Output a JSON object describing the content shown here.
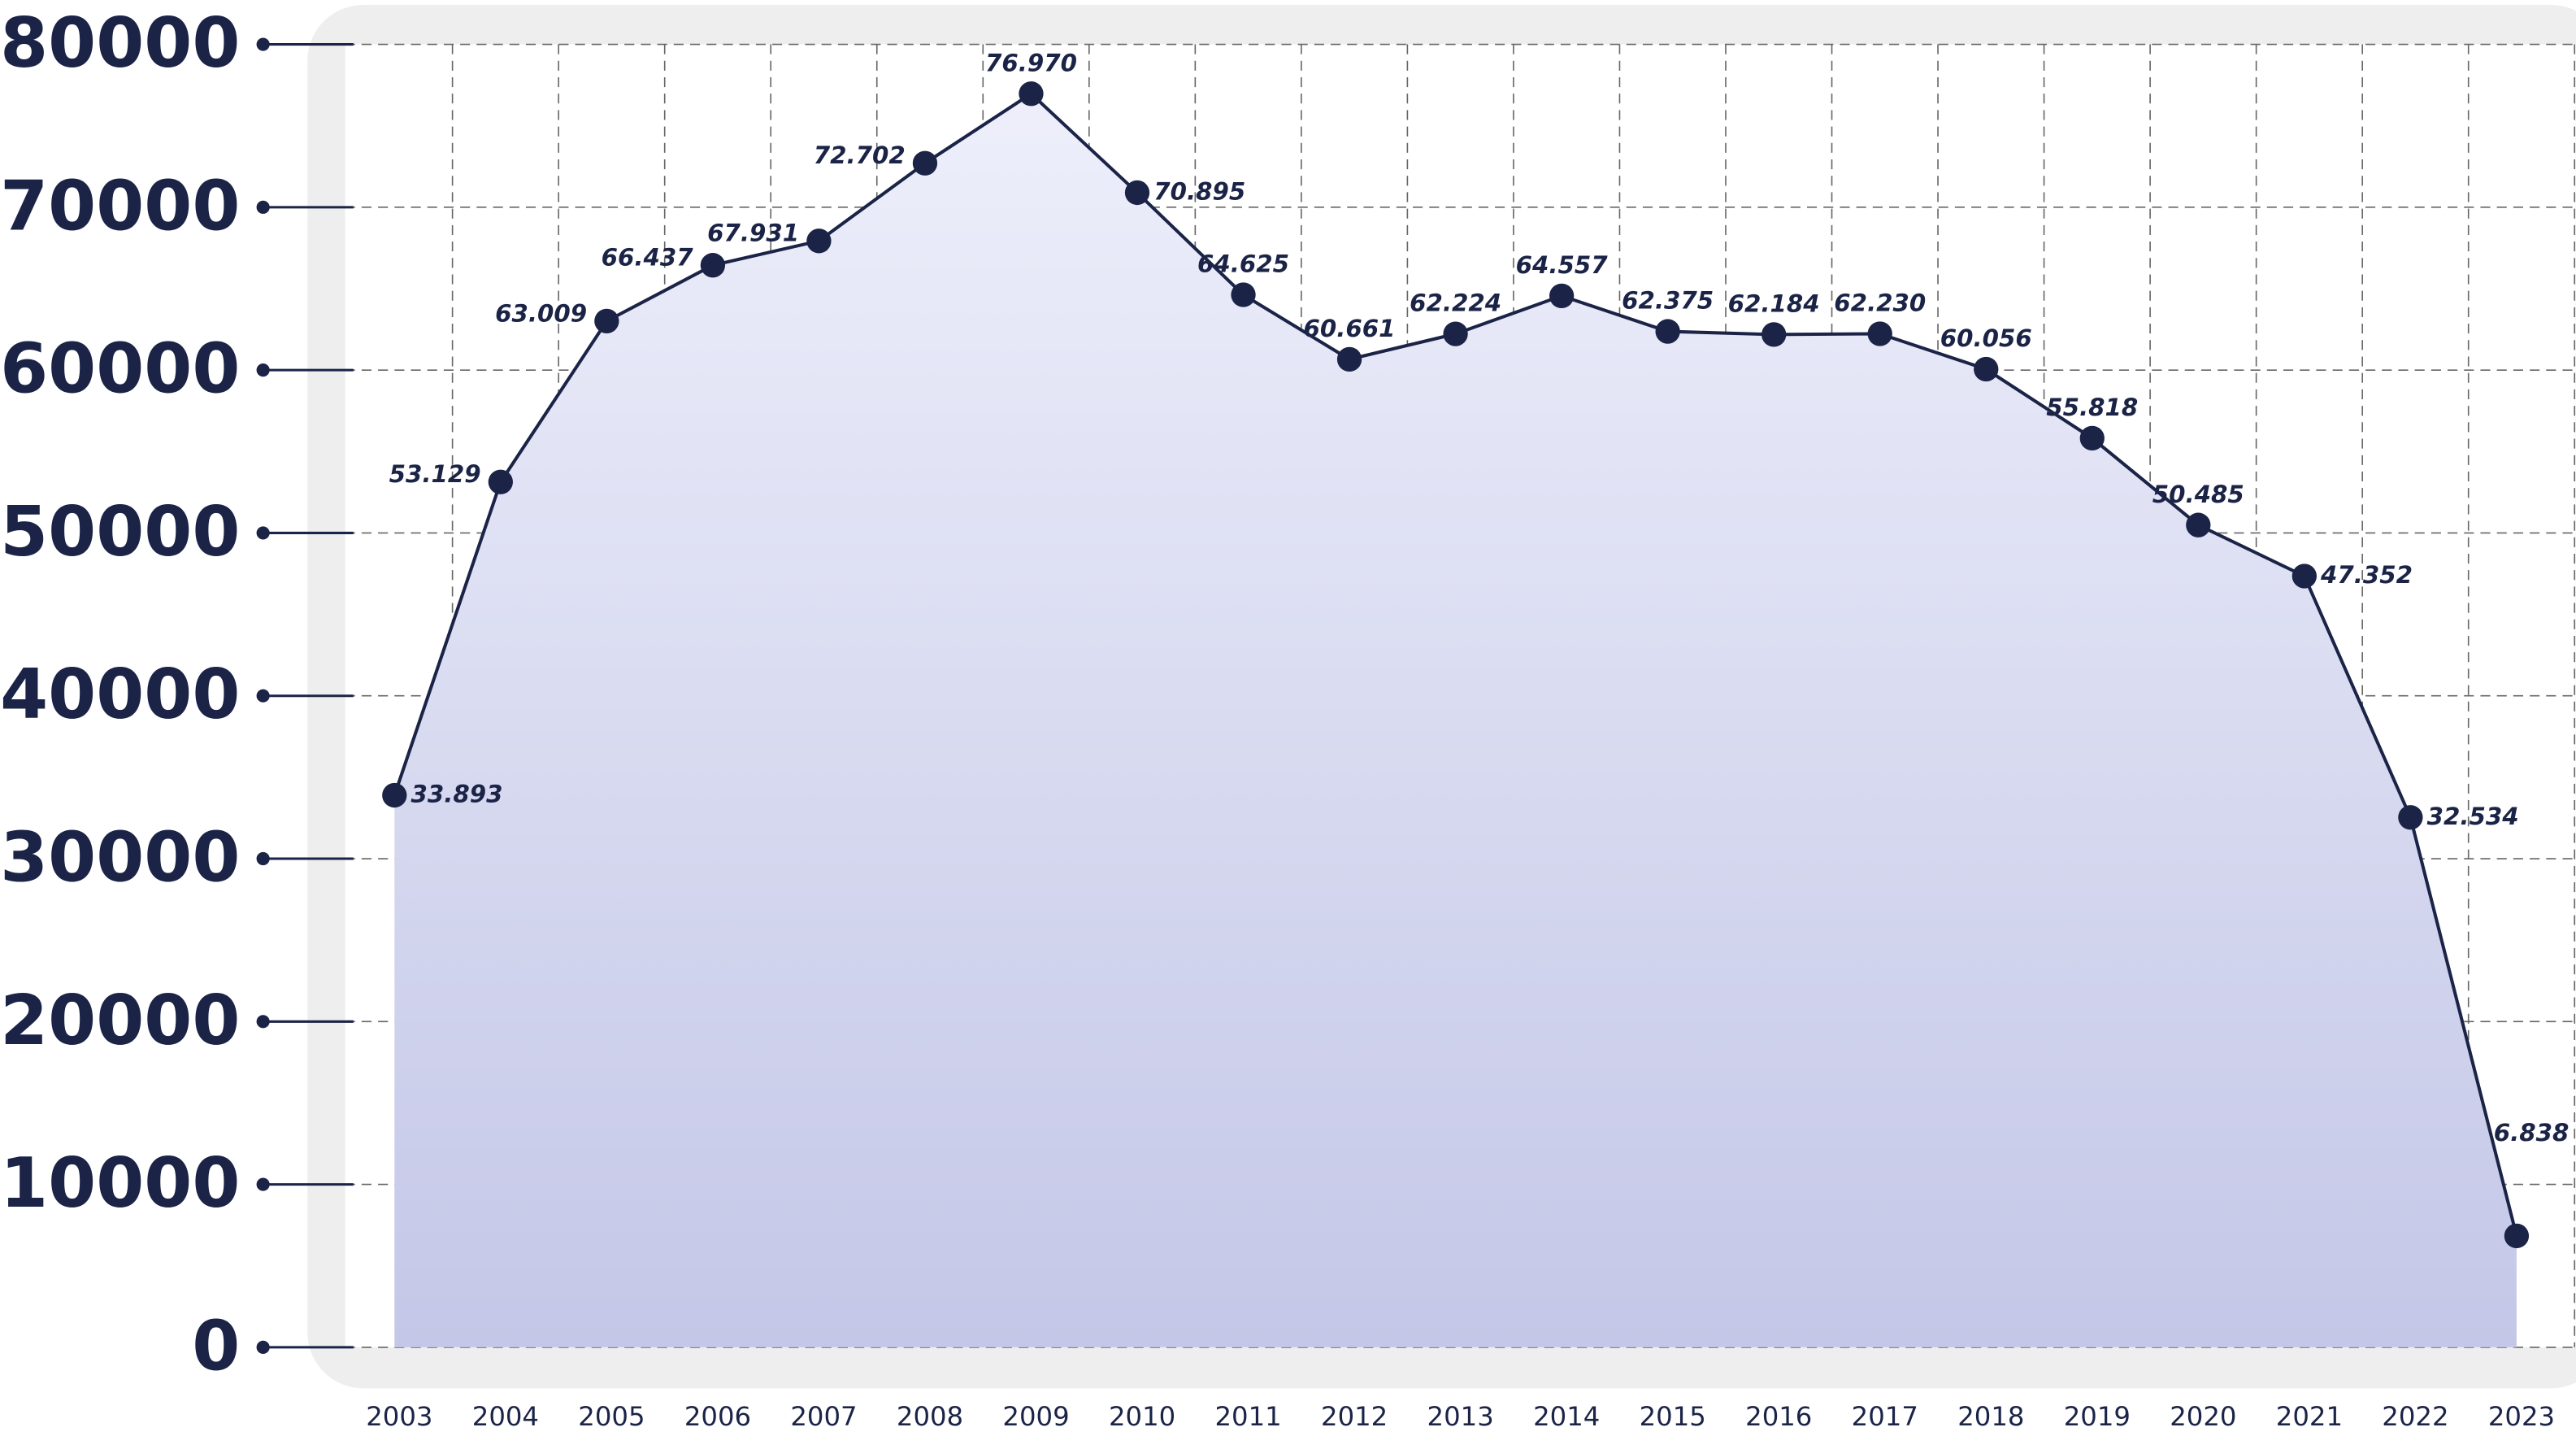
{
  "chart_data": {
    "type": "line",
    "categories": [
      "2003",
      "2004",
      "2005",
      "2006",
      "2007",
      "2008",
      "2009",
      "2010",
      "2011",
      "2012",
      "2013",
      "2014",
      "2015",
      "2016",
      "2017",
      "2018",
      "2019",
      "2020",
      "2021",
      "2022",
      "2023"
    ],
    "values": [
      33893,
      53129,
      63009,
      66437,
      67931,
      72702,
      76970,
      70895,
      64625,
      60661,
      62224,
      64557,
      62375,
      62184,
      62230,
      60056,
      55818,
      50485,
      47352,
      32534,
      6838
    ],
    "value_labels": [
      "33.893",
      "53.129",
      "63.009",
      "66.437",
      "67.931",
      "72.702",
      "76.970",
      "70.895",
      "64.625",
      "60.661",
      "62.224",
      "64.557",
      "62.375",
      "62.184",
      "62.230",
      "60.056",
      "55.818",
      "50.485",
      "47.352",
      "32.534",
      "6.838"
    ],
    "color": "#1b2447",
    "ylim": [
      0,
      80000
    ],
    "yticks": [
      0,
      10000,
      20000,
      30000,
      40000,
      50000,
      60000,
      70000,
      80000
    ],
    "grid": true
  }
}
